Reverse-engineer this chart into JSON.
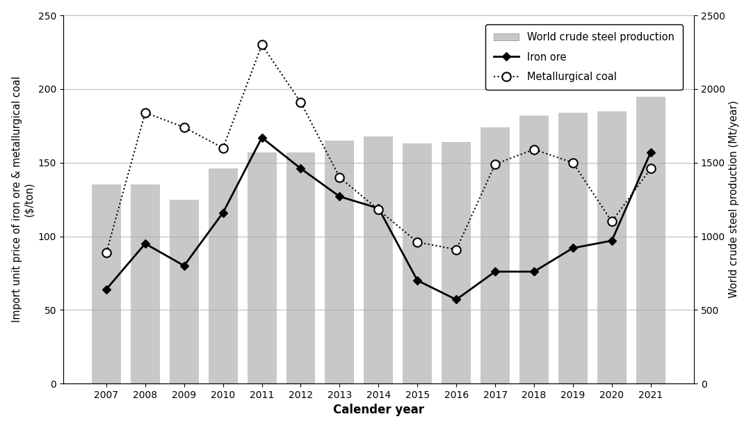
{
  "years": [
    2007,
    2008,
    2009,
    2010,
    2011,
    2012,
    2013,
    2014,
    2015,
    2016,
    2017,
    2018,
    2019,
    2020,
    2021
  ],
  "world_crude_steel_mt": [
    1350,
    1350,
    1250,
    1460,
    1570,
    1570,
    1650,
    1680,
    1630,
    1640,
    1740,
    1820,
    1840,
    1850,
    1950
  ],
  "iron_ore": [
    64,
    95,
    80,
    116,
    167,
    146,
    127,
    119,
    70,
    57,
    76,
    76,
    92,
    97,
    157
  ],
  "met_coal": [
    89,
    184,
    174,
    160,
    230,
    191,
    140,
    118,
    96,
    91,
    149,
    159,
    150,
    110,
    146
  ],
  "bar_color": "#c8c8c8",
  "iron_ore_color": "#000000",
  "met_coal_color": "#000000",
  "xlabel": "Calender year",
  "ylabel_left": "Import unit price of iron ore & metallurgical coal\n($/ton)",
  "ylabel_right": "World crude steel production (Mt/year)",
  "ylim_left": [
    0,
    250
  ],
  "ylim_right": [
    0,
    2500
  ],
  "yticks_left": [
    0,
    50,
    100,
    150,
    200,
    250
  ],
  "yticks_right": [
    0,
    500,
    1000,
    1500,
    2000,
    2500
  ],
  "legend_labels": [
    "World crude steel production",
    "Iron ore",
    "Metallurgical coal"
  ],
  "figsize": [
    10.8,
    6.15
  ],
  "dpi": 100
}
